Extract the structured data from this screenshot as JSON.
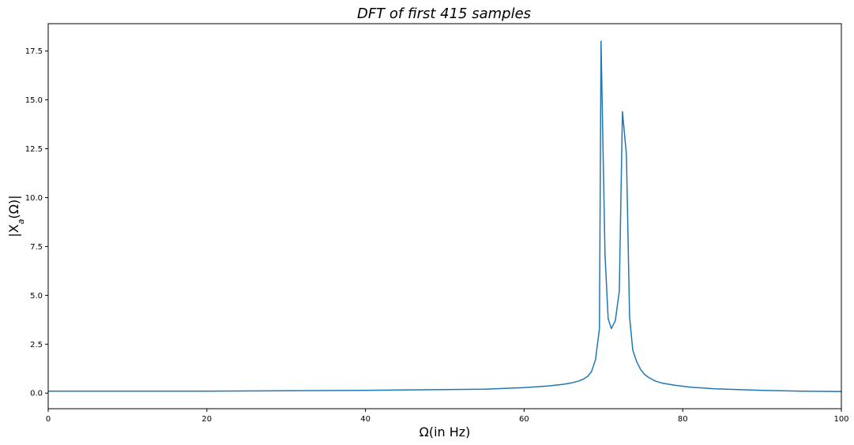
{
  "chart_data": {
    "type": "line",
    "title": "DFT of first 415 samples",
    "xlabel": "Ω(in Hz)",
    "ylabel": "|X_a(Ω)|",
    "xlim": [
      0,
      100
    ],
    "ylim": [
      -0.8,
      18.9
    ],
    "xticks": [
      0,
      20,
      40,
      60,
      80,
      100
    ],
    "yticks": [
      0.0,
      2.5,
      5.0,
      7.5,
      10.0,
      12.5,
      15.0,
      17.5
    ],
    "xtick_labels": [
      "0",
      "20",
      "40",
      "60",
      "80",
      "100"
    ],
    "ytick_labels": [
      "0.0",
      "2.5",
      "5.0",
      "7.5",
      "10.0",
      "12.5",
      "15.0",
      "17.5"
    ],
    "grid": false,
    "line_color": "#1f77b4",
    "series": [
      {
        "x": [
          0,
          10,
          20,
          30,
          40,
          50,
          55,
          60,
          63,
          65,
          66,
          67,
          67.5,
          68,
          68.5,
          69,
          69.5,
          69.7,
          70.2,
          70.6,
          71.0,
          71.5,
          72.0,
          72.4,
          72.9,
          73.3,
          73.7,
          74.2,
          74.7,
          75.2,
          75.7,
          76.5,
          77.5,
          79,
          81,
          84,
          87,
          90,
          95,
          100
        ],
        "y": [
          0.1,
          0.1,
          0.1,
          0.12,
          0.14,
          0.18,
          0.2,
          0.28,
          0.36,
          0.45,
          0.52,
          0.63,
          0.72,
          0.85,
          1.1,
          1.7,
          3.3,
          18.0,
          7.1,
          3.8,
          3.3,
          3.7,
          5.2,
          14.4,
          12.2,
          3.9,
          2.2,
          1.6,
          1.2,
          0.95,
          0.8,
          0.62,
          0.5,
          0.4,
          0.3,
          0.22,
          0.18,
          0.14,
          0.1,
          0.08
        ]
      }
    ]
  }
}
